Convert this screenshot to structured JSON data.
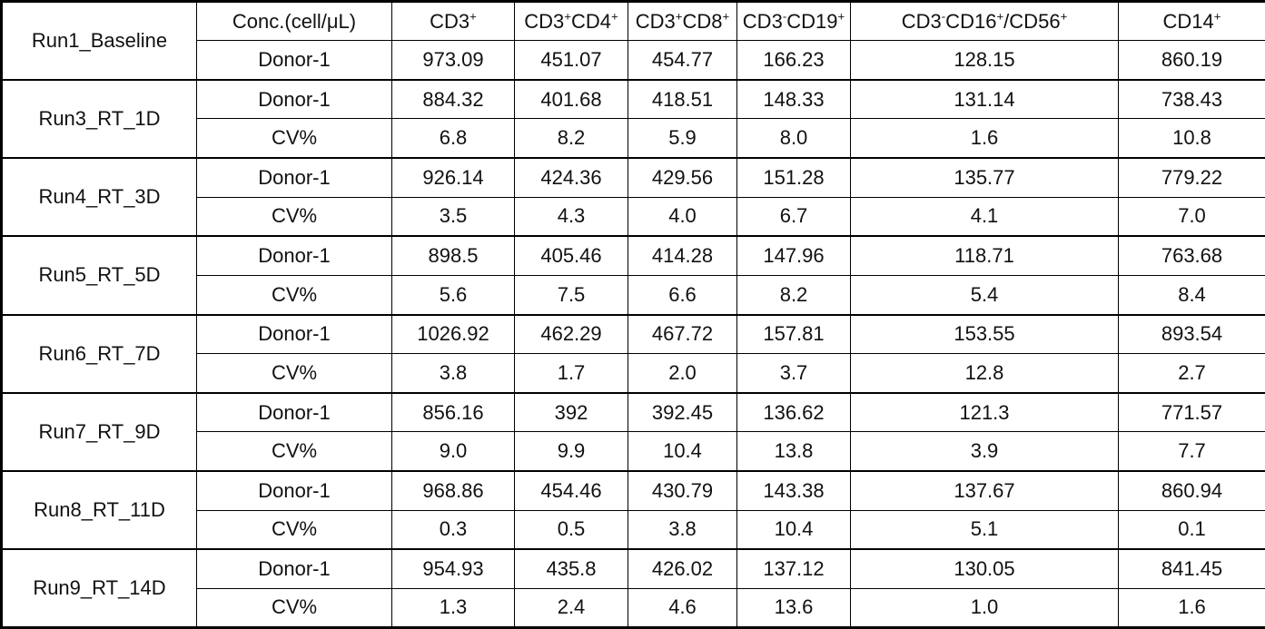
{
  "table": {
    "columns": {
      "conc_header": "Conc.(cell/μL)",
      "markers": [
        "CD3+",
        "CD3+CD4+",
        "CD3+CD8+",
        "CD3-CD19+",
        "CD3-CD16+/CD56+",
        "CD14+"
      ]
    },
    "groups": [
      {
        "run": "Run1_Baseline",
        "rows": [
          {
            "label": "Donor-1",
            "bold": false,
            "values": [
              "973.09",
              "451.07",
              "454.77",
              "166.23",
              "128.15",
              "860.19"
            ]
          }
        ]
      },
      {
        "run": "Run3_RT_1D",
        "rows": [
          {
            "label": "Donor-1",
            "bold": false,
            "values": [
              "884.32",
              "401.68",
              "418.51",
              "148.33",
              "131.14",
              "738.43"
            ]
          },
          {
            "label": "CV%",
            "bold": true,
            "values": [
              "6.8",
              "8.2",
              "5.9",
              "8.0",
              "1.6",
              "10.8"
            ]
          }
        ]
      },
      {
        "run": "Run4_RT_3D",
        "rows": [
          {
            "label": "Donor-1",
            "bold": false,
            "values": [
              "926.14",
              "424.36",
              "429.56",
              "151.28",
              "135.77",
              "779.22"
            ]
          },
          {
            "label": "CV%",
            "bold": true,
            "values": [
              "3.5",
              "4.3",
              "4.0",
              "6.7",
              "4.1",
              "7.0"
            ]
          }
        ]
      },
      {
        "run": "Run5_RT_5D",
        "rows": [
          {
            "label": "Donor-1",
            "bold": false,
            "values": [
              "898.5",
              "405.46",
              "414.28",
              "147.96",
              "118.71",
              "763.68"
            ]
          },
          {
            "label": "CV%",
            "bold": true,
            "values": [
              "5.6",
              "7.5",
              "6.6",
              "8.2",
              "5.4",
              "8.4"
            ]
          }
        ]
      },
      {
        "run": "Run6_RT_7D",
        "rows": [
          {
            "label": "Donor-1",
            "bold": false,
            "values": [
              "1026.92",
              "462.29",
              "467.72",
              "157.81",
              "153.55",
              "893.54"
            ]
          },
          {
            "label": "CV%",
            "bold": true,
            "values": [
              "3.8",
              "1.7",
              "2.0",
              "3.7",
              "12.8",
              "2.7"
            ]
          }
        ]
      },
      {
        "run": "Run7_RT_9D",
        "rows": [
          {
            "label": "Donor-1",
            "bold": false,
            "values": [
              "856.16",
              "392",
              "392.45",
              "136.62",
              "121.3",
              "771.57"
            ]
          },
          {
            "label": "CV%",
            "bold": true,
            "values": [
              "9.0",
              "9.9",
              "10.4",
              "13.8",
              "3.9",
              "7.7"
            ]
          }
        ]
      },
      {
        "run": "Run8_RT_11D",
        "rows": [
          {
            "label": "Donor-1",
            "bold": false,
            "values": [
              "968.86",
              "454.46",
              "430.79",
              "143.38",
              "137.67",
              "860.94"
            ]
          },
          {
            "label": "CV%",
            "bold": true,
            "values": [
              "0.3",
              "0.5",
              "3.8",
              "10.4",
              "5.1",
              "0.1"
            ]
          }
        ]
      },
      {
        "run": "Run9_RT_14D",
        "rows": [
          {
            "label": "Donor-1",
            "bold": false,
            "values": [
              "954.93",
              "435.8",
              "426.02",
              "137.12",
              "130.05",
              "841.45"
            ]
          },
          {
            "label": "CV%",
            "bold": true,
            "values": [
              "1.3",
              "2.4",
              "4.6",
              "13.6",
              "1.0",
              "1.6"
            ]
          }
        ]
      }
    ]
  },
  "colors": {
    "border": "#000000",
    "text": "#111111",
    "background": "#ffffff"
  }
}
